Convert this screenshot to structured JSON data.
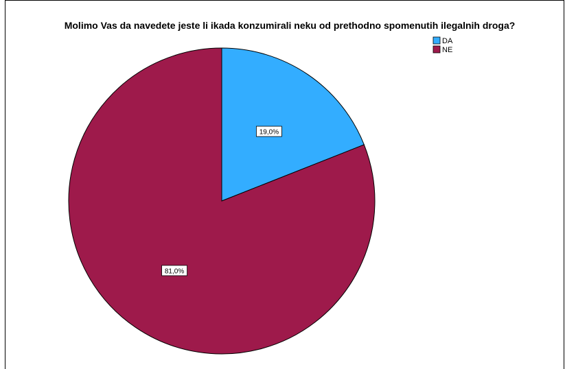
{
  "chart_data": {
    "type": "pie",
    "title": "Molimo Vas da navedete jeste li ikada konzumirali neku od prethodno spomenutih ilegalnih droga?",
    "categories": [
      "DA",
      "NE"
    ],
    "values": [
      19.0,
      81.0
    ],
    "data_labels": [
      "19,0%",
      "81,0%"
    ],
    "colors": [
      "#33ADFF",
      "#9E1A4B"
    ],
    "legend_position": "top-right",
    "start_angle_deg": 0,
    "direction": "clockwise"
  }
}
